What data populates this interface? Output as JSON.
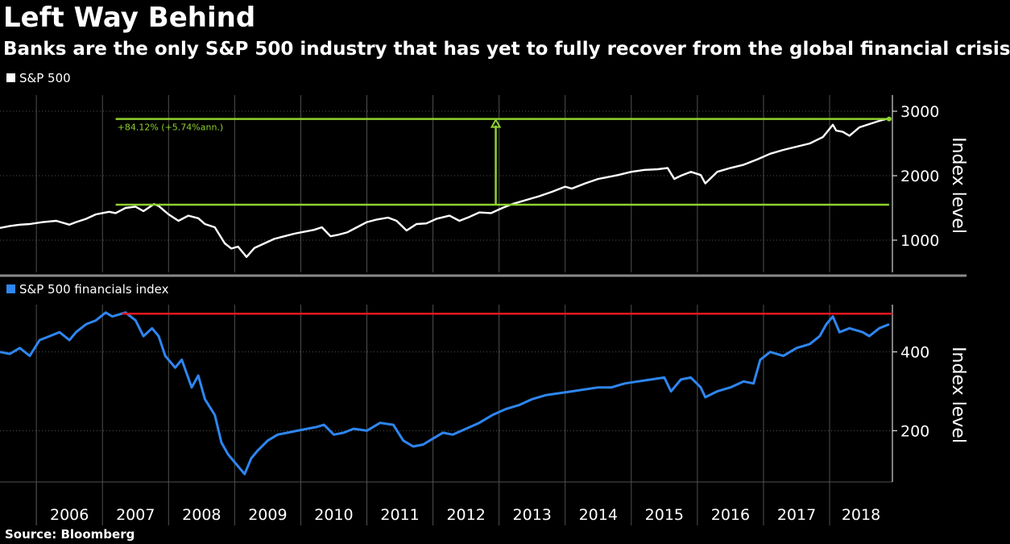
{
  "header": {
    "title": "Left Way Behind",
    "subtitle": "Banks are the only S&P 500 industry that has yet to fully recover from the global financial crisis"
  },
  "footer": {
    "source": "Source: Bloomberg"
  },
  "colors": {
    "background": "#000000",
    "sp500_line": "#ffffff",
    "financials_line": "#2e86f0",
    "annotation": "#8ed12f",
    "peak_line": "#e8171f",
    "grid": "#505050",
    "divider": "#8a8a8a"
  },
  "chart_data": [
    {
      "type": "line",
      "legend": "top-left",
      "grid": true,
      "ylabel": "Index level",
      "ylim": [
        500,
        3250
      ],
      "yticks": [
        1000,
        2000,
        3000
      ],
      "xlim": [
        2005.45,
        2018.95
      ],
      "series": [
        {
          "name": "S&P 500",
          "x": [
            2005.45,
            2005.6,
            2005.75,
            2005.9,
            2006.1,
            2006.3,
            2006.5,
            2006.6,
            2006.75,
            2006.9,
            2007.1,
            2007.2,
            2007.35,
            2007.5,
            2007.62,
            2007.78,
            2007.85,
            2008.0,
            2008.15,
            2008.3,
            2008.45,
            2008.55,
            2008.7,
            2008.85,
            2008.95,
            2009.05,
            2009.18,
            2009.3,
            2009.45,
            2009.6,
            2009.75,
            2009.9,
            2010.05,
            2010.2,
            2010.32,
            2010.45,
            2010.55,
            2010.7,
            2010.85,
            2011.0,
            2011.15,
            2011.32,
            2011.45,
            2011.6,
            2011.75,
            2011.9,
            2012.05,
            2012.25,
            2012.4,
            2012.55,
            2012.7,
            2012.88,
            2013.05,
            2013.2,
            2013.4,
            2013.6,
            2013.8,
            2014.0,
            2014.1,
            2014.3,
            2014.5,
            2014.6,
            2014.8,
            2015.0,
            2015.2,
            2015.4,
            2015.55,
            2015.65,
            2015.75,
            2015.9,
            2016.05,
            2016.12,
            2016.3,
            2016.5,
            2016.7,
            2016.9,
            2017.1,
            2017.3,
            2017.5,
            2017.7,
            2017.9,
            2018.05,
            2018.1,
            2018.2,
            2018.3,
            2018.45,
            2018.6,
            2018.75,
            2018.9
          ],
          "values": [
            1190,
            1220,
            1240,
            1250,
            1280,
            1300,
            1240,
            1280,
            1330,
            1400,
            1440,
            1420,
            1500,
            1520,
            1450,
            1560,
            1530,
            1400,
            1300,
            1380,
            1340,
            1250,
            1200,
            950,
            870,
            900,
            740,
            880,
            950,
            1020,
            1060,
            1100,
            1130,
            1160,
            1200,
            1060,
            1080,
            1120,
            1200,
            1280,
            1320,
            1350,
            1300,
            1150,
            1250,
            1260,
            1330,
            1380,
            1300,
            1360,
            1430,
            1420,
            1500,
            1560,
            1620,
            1680,
            1750,
            1830,
            1800,
            1880,
            1950,
            1970,
            2010,
            2060,
            2090,
            2100,
            2120,
            1950,
            2000,
            2060,
            2010,
            1880,
            2060,
            2120,
            2170,
            2250,
            2340,
            2400,
            2450,
            2500,
            2600,
            2790,
            2700,
            2680,
            2620,
            2750,
            2800,
            2850,
            2890
          ]
        }
      ],
      "annotations": {
        "change_label": "+84.12% (+5.74%ann.)",
        "lower_level": 1550,
        "upper_level": 2880,
        "lower_line_from": 2007.2,
        "upper_line_from": 2007.2,
        "lines_to": 2018.9,
        "arrow_x": 2012.95
      }
    },
    {
      "type": "line",
      "legend": "top-left",
      "grid": true,
      "ylabel": "Index level",
      "ylim": [
        70,
        520
      ],
      "yticks": [
        200,
        400
      ],
      "xlim": [
        2005.45,
        2018.95
      ],
      "series": [
        {
          "name": "S&P 500 financials index",
          "x": [
            2005.45,
            2005.6,
            2005.75,
            2005.9,
            2006.05,
            2006.2,
            2006.35,
            2006.5,
            2006.6,
            2006.75,
            2006.9,
            2007.05,
            2007.15,
            2007.35,
            2007.5,
            2007.62,
            2007.75,
            2007.85,
            2007.95,
            2008.1,
            2008.2,
            2008.35,
            2008.45,
            2008.55,
            2008.7,
            2008.8,
            2008.9,
            2009.0,
            2009.15,
            2009.25,
            2009.35,
            2009.5,
            2009.65,
            2009.8,
            2009.95,
            2010.1,
            2010.25,
            2010.35,
            2010.5,
            2010.65,
            2010.8,
            2011.0,
            2011.2,
            2011.4,
            2011.55,
            2011.7,
            2011.85,
            2012.0,
            2012.15,
            2012.3,
            2012.5,
            2012.7,
            2012.9,
            2013.1,
            2013.3,
            2013.5,
            2013.7,
            2013.9,
            2014.1,
            2014.3,
            2014.5,
            2014.7,
            2014.9,
            2015.1,
            2015.3,
            2015.5,
            2015.6,
            2015.75,
            2015.9,
            2016.05,
            2016.12,
            2016.3,
            2016.5,
            2016.7,
            2016.85,
            2016.95,
            2017.1,
            2017.3,
            2017.5,
            2017.7,
            2017.85,
            2017.95,
            2018.05,
            2018.15,
            2018.3,
            2018.5,
            2018.6,
            2018.75,
            2018.9
          ],
          "values": [
            400,
            395,
            410,
            390,
            430,
            440,
            450,
            430,
            450,
            470,
            480,
            500,
            490,
            500,
            480,
            440,
            460,
            440,
            390,
            360,
            380,
            310,
            340,
            280,
            240,
            170,
            140,
            120,
            90,
            130,
            150,
            175,
            190,
            195,
            200,
            205,
            210,
            215,
            190,
            195,
            205,
            200,
            220,
            215,
            175,
            160,
            165,
            180,
            195,
            190,
            205,
            220,
            240,
            255,
            265,
            280,
            290,
            295,
            300,
            305,
            310,
            310,
            320,
            325,
            330,
            335,
            300,
            330,
            335,
            310,
            285,
            300,
            310,
            325,
            320,
            380,
            400,
            390,
            410,
            420,
            440,
            470,
            490,
            450,
            460,
            450,
            440,
            460,
            470
          ]
        }
      ],
      "annotations": {
        "peak_level": 497,
        "peak_line_from": 2007.3,
        "peak_line_to": 2018.95
      }
    }
  ],
  "x_axis": {
    "years": [
      "2006",
      "2007",
      "2008",
      "2009",
      "2010",
      "2011",
      "2012",
      "2013",
      "2014",
      "2015",
      "2016",
      "2017",
      "2018"
    ]
  }
}
